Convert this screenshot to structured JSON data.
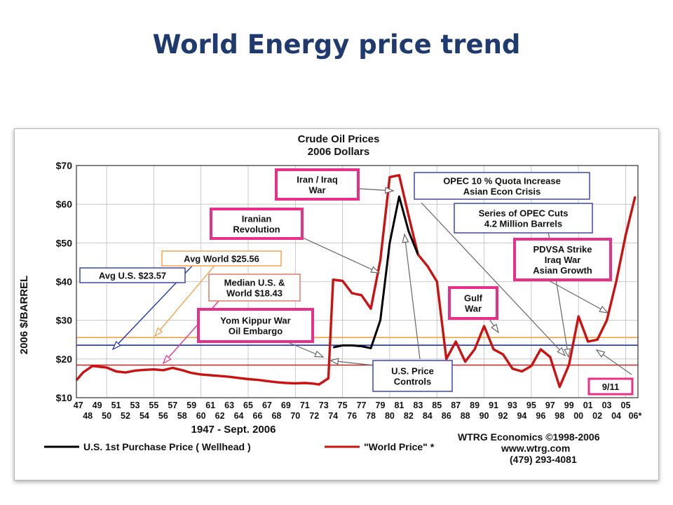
{
  "slide": {
    "title": "World Energy price trend"
  },
  "chart_data": {
    "type": "line",
    "title": "Crude Oil Prices",
    "subtitle": "2006 Dollars",
    "xlabel": "1947 - Sept. 2006",
    "ylabel": "2006 $/BARREL",
    "ylim": [
      10,
      70
    ],
    "y_ticks": [
      "$10",
      "$20",
      "$30",
      "$40",
      "$50",
      "$60",
      "$70"
    ],
    "x_ticks_top": [
      "47",
      "49",
      "51",
      "53",
      "55",
      "57",
      "59",
      "61",
      "63",
      "65",
      "67",
      "69",
      "71",
      "73",
      "75",
      "77",
      "79",
      "81",
      "83",
      "85",
      "87",
      "89",
      "91",
      "93",
      "95",
      "97",
      "99",
      "01",
      "03",
      "05"
    ],
    "x_ticks_bottom": [
      "48",
      "50",
      "52",
      "54",
      "56",
      "58",
      "60",
      "62",
      "64",
      "66",
      "68",
      "70",
      "72",
      "74",
      "76",
      "78",
      "80",
      "82",
      "84",
      "86",
      "88",
      "90",
      "92",
      "94",
      "96",
      "98",
      "00",
      "02",
      "04",
      "06*"
    ],
    "grid": true,
    "series": [
      {
        "name": "\"World Price\" *",
        "color": "#cc1111",
        "x": [
          1946.8,
          1947.5,
          1948.5,
          1950,
          1951,
          1952,
          1953,
          1954,
          1955,
          1956,
          1957,
          1958,
          1959,
          1960,
          1961,
          1962,
          1963,
          1964,
          1965,
          1966,
          1967,
          1968,
          1969,
          1970,
          1971,
          1972,
          1972.5,
          1973,
          1973.5,
          1974,
          1975,
          1976,
          1977,
          1978,
          1979,
          1980,
          1981,
          1982,
          1983,
          1984,
          1985,
          1986,
          1987,
          1988,
          1989,
          1990,
          1991,
          1992,
          1993,
          1994,
          1995,
          1996,
          1997,
          1998,
          1999,
          2000,
          2001,
          2002,
          2003,
          2004,
          2005,
          2006
        ],
        "values": [
          14.5,
          16.5,
          18.2,
          17.8,
          16.8,
          16.5,
          17,
          17.2,
          17.3,
          17.1,
          17.7,
          17.1,
          16.4,
          16,
          15.8,
          15.6,
          15.4,
          15.1,
          14.8,
          14.6,
          14.3,
          14,
          13.8,
          13.7,
          13.8,
          13.6,
          13.4,
          14.2,
          15,
          40.5,
          40.2,
          37,
          36.5,
          33,
          45.5,
          67,
          67.5,
          57,
          47,
          44,
          40,
          20,
          24.5,
          19.3,
          22.5,
          28.5,
          22.5,
          21.2,
          17.5,
          16.8,
          18.2,
          22.5,
          20.5,
          12.8,
          18.5,
          31,
          24.5,
          25,
          30,
          40,
          52,
          62
        ]
      },
      {
        "name": "U.S. 1st Purchase Price ( Wellhead )",
        "color": "#000000",
        "x": [
          1974,
          1975,
          1976,
          1977,
          1978,
          1979,
          1980,
          1981,
          1982,
          1983
        ],
        "values": [
          23,
          23.5,
          23.5,
          23.3,
          22.8,
          30,
          50,
          62,
          53,
          47
        ]
      }
    ],
    "reference_lines": [
      {
        "name": "Avg World $25.56",
        "value": 25.56,
        "color": "#f7a34b"
      },
      {
        "name": "Avg U.S. $23.57",
        "value": 23.57,
        "color": "#2233bb"
      },
      {
        "name": "Median U.S. & World $18.43",
        "value": 18.43,
        "color": "#cc2222"
      }
    ],
    "annotations": {
      "iran_iraq": [
        "Iran / Iraq",
        "War"
      ],
      "iranian_rev": [
        "Iranian",
        "Revolution"
      ],
      "yom_kippur": [
        "Yom Kippur War",
        "Oil Embargo"
      ],
      "opec_quota": [
        "OPEC 10 % Quota Increase",
        "Asian Econ Crisis"
      ],
      "opec_cuts": [
        "Series of OPEC Cuts",
        "4.2 Million Barrels"
      ],
      "pdvsa": [
        "PDVSA Strike",
        "Iraq War",
        "Asian Growth"
      ],
      "gulf_war": [
        "Gulf",
        "War"
      ],
      "price_controls": [
        "U.S. Price",
        "Controls"
      ],
      "nine_eleven": [
        "9/11"
      ],
      "avg_world": [
        "Avg World $25.56"
      ],
      "avg_us": [
        "Avg U.S. $23.57"
      ],
      "median": [
        "Median U.S. &",
        "World  $18.43"
      ]
    },
    "source": [
      "WTRG Economics  ©1998-2006",
      "www.wtrg.com",
      "(479) 293-4081"
    ]
  },
  "colors": {
    "title": "#1f3a6e",
    "box_pink": "#e8308a",
    "box_blue": "#3b47b5",
    "box_orange": "#f7a34b",
    "box_salmon": "#e07a6a",
    "arrow_gray": "#666666"
  }
}
